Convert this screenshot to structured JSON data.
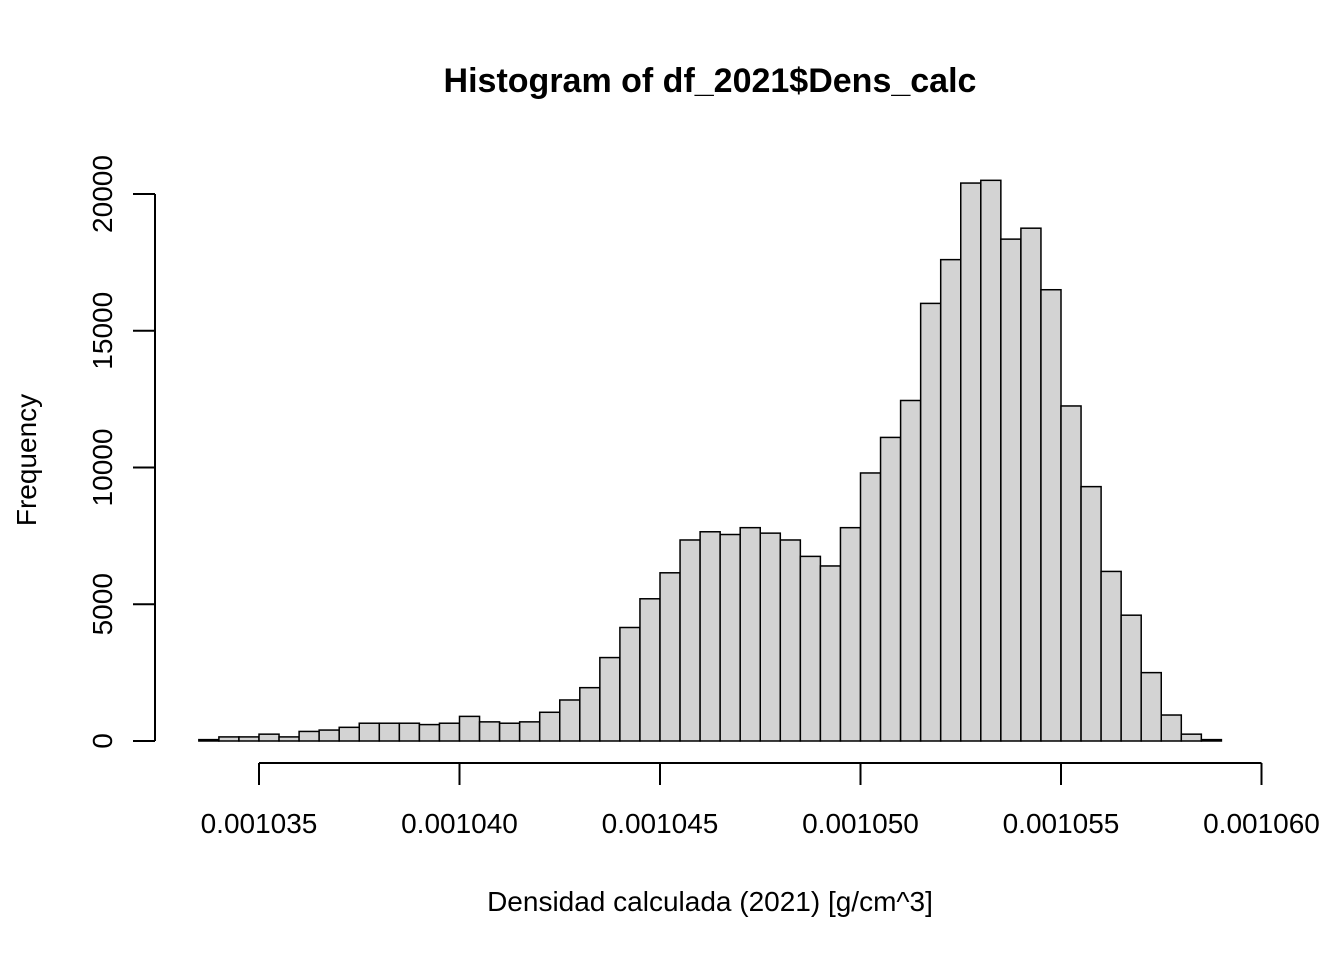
{
  "chart_data": {
    "type": "bar",
    "title": "Histogram of df_2021$Dens_calc",
    "xlabel": "Densidad calculada (2021) [g/cm^3]",
    "ylabel": "Frequency",
    "bin_width": 5e-07,
    "bin_start": 0.0010335,
    "values": [
      50,
      150,
      150,
      250,
      150,
      350,
      400,
      500,
      650,
      650,
      650,
      600,
      650,
      900,
      700,
      650,
      700,
      1050,
      1500,
      1950,
      3050,
      4150,
      5200,
      6150,
      7350,
      7650,
      7550,
      7800,
      7600,
      7350,
      6750,
      6400,
      7800,
      9800,
      11100,
      12450,
      16000,
      17600,
      20400,
      20500,
      18350,
      18750,
      16500,
      12250,
      9300,
      6200,
      4600,
      2500,
      950,
      250,
      50
    ],
    "xlim": [
      0.0010335,
      0.0010595
    ],
    "ylim": [
      0,
      21000
    ],
    "x_ticks": [
      0.001035,
      0.00104,
      0.001045,
      0.00105,
      0.001055,
      0.00106
    ],
    "x_tick_labels": [
      "0.001035",
      "0.001040",
      "0.001045",
      "0.001050",
      "0.001055",
      "0.001060"
    ],
    "y_ticks": [
      0,
      5000,
      10000,
      15000,
      20000
    ],
    "y_tick_labels": [
      "0",
      "5000",
      "10000",
      "15000",
      "20000"
    ],
    "bar_color": "#d3d3d3",
    "bar_stroke": "#000000",
    "grid": false,
    "legend": "none"
  }
}
